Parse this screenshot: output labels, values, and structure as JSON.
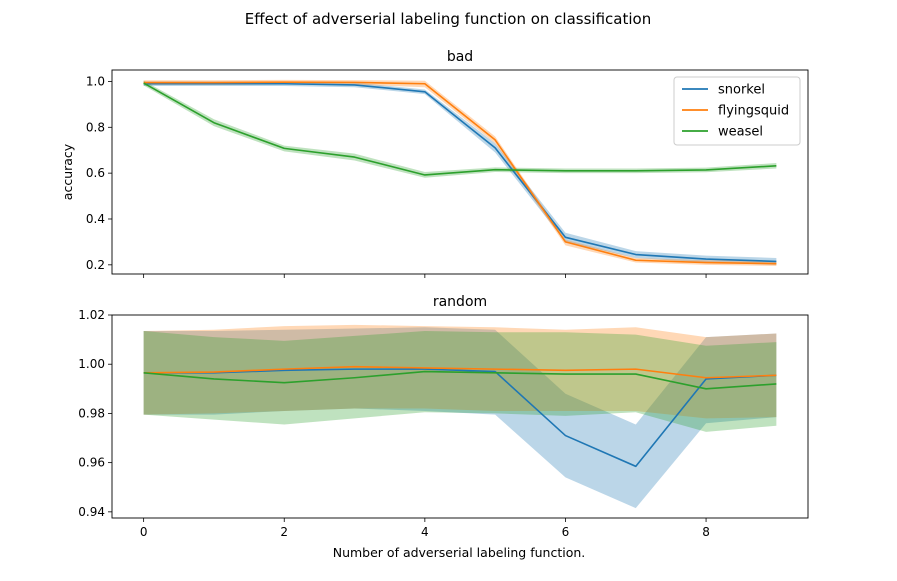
{
  "figure": {
    "suptitle": "Effect of adverserial labeling function on classification",
    "xlabel": "Number of adverserial labeling function."
  },
  "colors": {
    "snorkel": "#1f77b4",
    "flyingsquid": "#ff7f0e",
    "weasel": "#2ca02c"
  },
  "chart_data": [
    {
      "type": "line",
      "title": "bad",
      "ylabel": "accuracy",
      "x": [
        0,
        1,
        2,
        3,
        4,
        5,
        6,
        7,
        8,
        9
      ],
      "xlim": [
        -0.45,
        9.45
      ],
      "ylim": [
        0.16,
        1.05
      ],
      "xticks": [
        0,
        2,
        4,
        6,
        8
      ],
      "yticks": [
        0.2,
        0.4,
        0.6,
        0.8,
        1.0
      ],
      "ytick_labels": [
        "0.2",
        "0.4",
        "0.6",
        "0.8",
        "1.0"
      ],
      "show_xtick_labels": false,
      "legend": "top-right",
      "series": [
        {
          "name": "snorkel",
          "color": "#1f77b4",
          "values": [
            0.99,
            0.99,
            0.99,
            0.985,
            0.955,
            0.71,
            0.32,
            0.245,
            0.225,
            0.215
          ],
          "lower": [
            0.98,
            0.98,
            0.98,
            0.975,
            0.945,
            0.69,
            0.3,
            0.23,
            0.21,
            0.2
          ],
          "upper": [
            1.0,
            1.0,
            1.0,
            0.995,
            0.965,
            0.73,
            0.34,
            0.26,
            0.24,
            0.23
          ]
        },
        {
          "name": "flyingsquid",
          "color": "#ff7f0e",
          "values": [
            0.995,
            0.995,
            0.997,
            0.996,
            0.99,
            0.745,
            0.3,
            0.22,
            0.21,
            0.205
          ],
          "lower": [
            0.985,
            0.985,
            0.987,
            0.986,
            0.975,
            0.73,
            0.285,
            0.21,
            0.2,
            0.195
          ],
          "upper": [
            1.005,
            1.005,
            1.007,
            1.006,
            1.003,
            0.76,
            0.31,
            0.23,
            0.22,
            0.215
          ]
        },
        {
          "name": "weasel",
          "color": "#2ca02c",
          "values": [
            0.993,
            0.82,
            0.708,
            0.67,
            0.592,
            0.615,
            0.61,
            0.61,
            0.614,
            0.632
          ],
          "lower": [
            0.983,
            0.805,
            0.695,
            0.655,
            0.58,
            0.605,
            0.6,
            0.6,
            0.604,
            0.62
          ],
          "upper": [
            1.003,
            0.835,
            0.72,
            0.685,
            0.605,
            0.625,
            0.62,
            0.62,
            0.624,
            0.644
          ]
        }
      ]
    },
    {
      "type": "line",
      "title": "random",
      "ylabel": "",
      "x": [
        0,
        1,
        2,
        3,
        4,
        5,
        6,
        7,
        8,
        9
      ],
      "xlim": [
        -0.45,
        9.45
      ],
      "ylim": [
        0.9375,
        1.02
      ],
      "xticks": [
        0,
        2,
        4,
        6,
        8
      ],
      "xtick_labels": [
        "0",
        "2",
        "4",
        "6",
        "8"
      ],
      "yticks": [
        0.94,
        0.96,
        0.98,
        1.0,
        1.02
      ],
      "ytick_labels": [
        "0.94",
        "0.96",
        "0.98",
        "1.00",
        "1.02"
      ],
      "show_xtick_labels": true,
      "legend": "none",
      "series": [
        {
          "name": "snorkel",
          "color": "#1f77b4",
          "values": [
            0.9965,
            0.9965,
            0.9975,
            0.998,
            0.998,
            0.997,
            0.971,
            0.9585,
            0.994,
            0.9955
          ],
          "lower": [
            0.9795,
            0.9795,
            0.981,
            0.982,
            0.981,
            0.9795,
            0.954,
            0.9415,
            0.976,
            0.9785
          ],
          "upper": [
            1.0135,
            1.0135,
            1.014,
            1.0145,
            1.015,
            1.014,
            0.988,
            0.9755,
            1.011,
            1.0125
          ]
        },
        {
          "name": "flyingsquid",
          "color": "#ff7f0e",
          "values": [
            0.9965,
            0.9968,
            0.998,
            0.999,
            0.9985,
            0.998,
            0.9975,
            0.998,
            0.9945,
            0.9955
          ],
          "lower": [
            0.9795,
            0.98,
            0.981,
            0.982,
            0.982,
            0.981,
            0.981,
            0.981,
            0.978,
            0.9785
          ],
          "upper": [
            1.0135,
            1.014,
            1.0155,
            1.016,
            1.0155,
            1.015,
            1.014,
            1.015,
            1.011,
            1.0125
          ]
        },
        {
          "name": "weasel",
          "color": "#2ca02c",
          "values": [
            0.9965,
            0.994,
            0.9925,
            0.9945,
            0.997,
            0.9965,
            0.996,
            0.996,
            0.99,
            0.992
          ],
          "lower": [
            0.9795,
            0.9775,
            0.9755,
            0.978,
            0.9805,
            0.98,
            0.979,
            0.9805,
            0.9725,
            0.975
          ],
          "upper": [
            1.0135,
            1.011,
            1.0095,
            1.0115,
            1.0135,
            1.013,
            1.013,
            1.012,
            1.0075,
            1.009
          ]
        }
      ]
    }
  ]
}
